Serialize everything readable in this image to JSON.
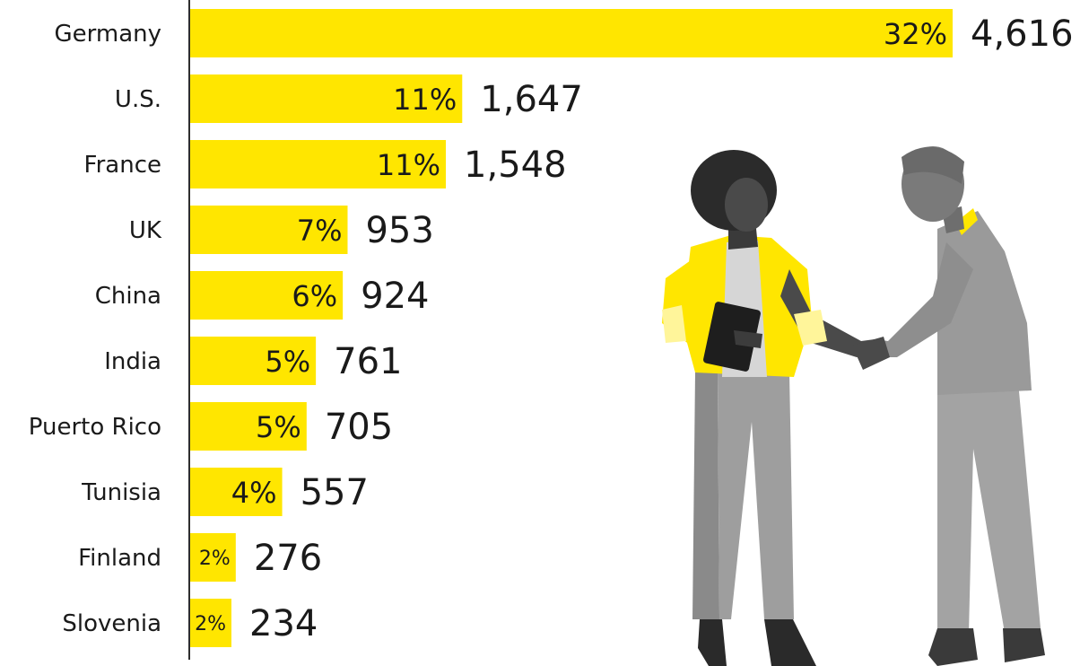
{
  "colors": {
    "bar": "#FFE600",
    "text": "#1a1a1a",
    "axis": "#2e2e2e"
  },
  "chart_data": {
    "type": "bar",
    "orientation": "horizontal",
    "categories": [
      "Germany",
      "U.S.",
      "France",
      "UK",
      "China",
      "India",
      "Puerto Rico",
      "Tunisia",
      "Finland",
      "Slovenia"
    ],
    "values": [
      4616,
      1647,
      1548,
      953,
      924,
      761,
      705,
      557,
      276,
      234
    ],
    "value_labels": [
      "4,616",
      "1,647",
      "1,548",
      "953",
      "924",
      "761",
      "705",
      "557",
      "276",
      "234"
    ],
    "percent_labels": [
      "32%",
      "11%",
      "11%",
      "7%",
      "6%",
      "5%",
      "5%",
      "4%",
      "2%",
      "2%"
    ],
    "xlim": [
      0,
      4616
    ],
    "grid": false,
    "legend": "none"
  },
  "illustration": {
    "subject": "two people shaking hands"
  }
}
